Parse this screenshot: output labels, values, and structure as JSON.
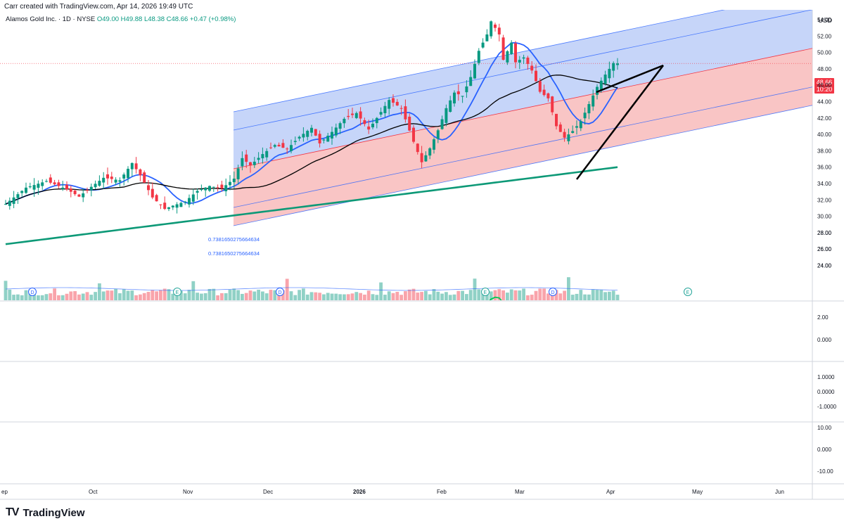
{
  "caption": "Carr created with TradingView.com, Apr 14, 2026 19:49 UTC",
  "legend": {
    "symbol": "Alamos Gold Inc. · 1D · NYSE",
    "ohlc": "O49.00  H49.88  L48.38  C48.66  +0.47 (+0.98%)"
  },
  "currency": "USD",
  "last_price": {
    "value": "48.66",
    "countdown": "10:20"
  },
  "fib_labels": [
    "0.7381650275664634",
    "0.7381650275664634"
  ],
  "brand": {
    "logo_text": "TV",
    "name": "TradingView"
  },
  "chart_data": [
    {
      "type": "candlestick",
      "symbol": "AGI",
      "timeframe": "1D",
      "ylim": [
        22,
        56
      ],
      "y_ticks": [
        "54.00",
        "52.00",
        "50.00",
        "48.00",
        "46.00",
        "44.00",
        "42.00",
        "40.00",
        "38.00",
        "36.00",
        "34.00",
        "32.00",
        "30.00",
        "28.00",
        "26.00",
        "24.00"
      ],
      "x_ticks": [
        "ep",
        "Oct",
        "Nov",
        "Dec",
        "2026",
        "Feb",
        "Mar",
        "Apr",
        "May",
        "Jun"
      ],
      "close_path": [
        {
          "bar": 0,
          "close": 31.5
        },
        {
          "bar": 5,
          "close": 33.5
        },
        {
          "bar": 10,
          "close": 34.3
        },
        {
          "bar": 15,
          "close": 33.3
        },
        {
          "bar": 18,
          "close": 32.4
        },
        {
          "bar": 21,
          "close": 33.6
        },
        {
          "bar": 24,
          "close": 34.7
        },
        {
          "bar": 28,
          "close": 34.4
        },
        {
          "bar": 31,
          "close": 36.5
        },
        {
          "bar": 33,
          "close": 35.0
        },
        {
          "bar": 36,
          "close": 32.3
        },
        {
          "bar": 39,
          "close": 30.9
        },
        {
          "bar": 41,
          "close": 31.3
        },
        {
          "bar": 44,
          "close": 31.8
        },
        {
          "bar": 47,
          "close": 33.1
        },
        {
          "bar": 50,
          "close": 33.7
        },
        {
          "bar": 53,
          "close": 33.4
        },
        {
          "bar": 56,
          "close": 34.6
        },
        {
          "bar": 58,
          "close": 37.1
        },
        {
          "bar": 60,
          "close": 36.2
        },
        {
          "bar": 63,
          "close": 37.6
        },
        {
          "bar": 66,
          "close": 38.7
        },
        {
          "bar": 69,
          "close": 38.2
        },
        {
          "bar": 72,
          "close": 39.7
        },
        {
          "bar": 75,
          "close": 40.8
        },
        {
          "bar": 77,
          "close": 38.9
        },
        {
          "bar": 80,
          "close": 40.3
        },
        {
          "bar": 83,
          "close": 41.9
        },
        {
          "bar": 86,
          "close": 42.6
        },
        {
          "bar": 89,
          "close": 40.6
        },
        {
          "bar": 91,
          "close": 42.0
        },
        {
          "bar": 94,
          "close": 44.2
        },
        {
          "bar": 97,
          "close": 43.2
        },
        {
          "bar": 100,
          "close": 39.1
        },
        {
          "bar": 102,
          "close": 36.6
        },
        {
          "bar": 104,
          "close": 38.3
        },
        {
          "bar": 106,
          "close": 40.5
        },
        {
          "bar": 108,
          "close": 43.2
        },
        {
          "bar": 110,
          "close": 45.1
        },
        {
          "bar": 112,
          "close": 44.7
        },
        {
          "bar": 114,
          "close": 47.0
        },
        {
          "bar": 116,
          "close": 50.2
        },
        {
          "bar": 118,
          "close": 52.2
        },
        {
          "bar": 119,
          "close": 53.8
        },
        {
          "bar": 121,
          "close": 52.2
        },
        {
          "bar": 122,
          "close": 49.1
        },
        {
          "bar": 124,
          "close": 51.2
        },
        {
          "bar": 125,
          "close": 48.8
        },
        {
          "bar": 127,
          "close": 49.4
        },
        {
          "bar": 129,
          "close": 47.8
        },
        {
          "bar": 131,
          "close": 45.2
        },
        {
          "bar": 133,
          "close": 44.4
        },
        {
          "bar": 135,
          "close": 41.0
        },
        {
          "bar": 137,
          "close": 39.6
        },
        {
          "bar": 139,
          "close": 40.4
        },
        {
          "bar": 141,
          "close": 41.6
        },
        {
          "bar": 143,
          "close": 43.7
        },
        {
          "bar": 145,
          "close": 45.8
        },
        {
          "bar": 147,
          "close": 47.3
        },
        {
          "bar": 149,
          "close": 48.7
        },
        {
          "bar": 150,
          "close": 48.66
        }
      ],
      "volume_ticks": [
        "28.00",
        "26.00",
        "24.00"
      ],
      "event_markers": [
        "D",
        "E",
        "D",
        "E",
        "D",
        "E"
      ]
    },
    {
      "type": "histogram",
      "name": "oscillator-1",
      "y_ticks": [
        "2.00",
        "0.000"
      ]
    },
    {
      "type": "line",
      "name": "oscillator-2",
      "y_ticks": [
        "1.0000",
        "0.0000",
        "-1.0000"
      ]
    },
    {
      "type": "histogram",
      "name": "oscillator-3",
      "y_ticks": [
        "10.00",
        "0.000",
        "-10.00"
      ]
    }
  ],
  "colors": {
    "up": "#089981",
    "down": "#f23645",
    "ma_fast": "#2962ff",
    "ma_mid": "#000000",
    "ma_slow": "#0d9977",
    "channel_blue": "#b3c7f7",
    "channel_red": "#f7b2b2",
    "hist_green": "#00e676",
    "hist_red": "#ff1744",
    "osc_yellow": "#ffeb3b"
  }
}
